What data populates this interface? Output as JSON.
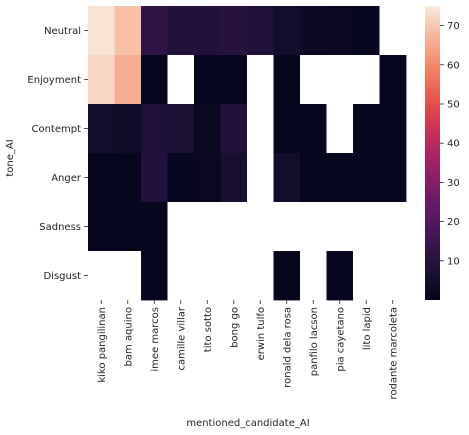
{
  "chart_data": {
    "type": "heatmap",
    "title": "",
    "xlabel": "mentioned_candidate_AI",
    "ylabel": "tone_AI",
    "x_categories": [
      "kiko pangilinan",
      "bam aquino",
      "imee marcos",
      "camille villar",
      "tito sotto",
      "bong go",
      "erwin tulfo",
      "ronald dela rosa",
      "panfilo lacson",
      "pia cayetano",
      "lito lapid",
      "rodante marcoleta"
    ],
    "y_categories": [
      "Neutral",
      "Enjoyment",
      "Contempt",
      "Anger",
      "Sadness",
      "Disgust"
    ],
    "values": [
      [
        74,
        69,
        12,
        9,
        9,
        10,
        8,
        5,
        3,
        2,
        1,
        null
      ],
      [
        72,
        66,
        1,
        null,
        1,
        1,
        null,
        1,
        null,
        null,
        null,
        1
      ],
      [
        5,
        4,
        8,
        7,
        2,
        9,
        null,
        1,
        1,
        null,
        1,
        1
      ],
      [
        1,
        1,
        9,
        1,
        2,
        6,
        null,
        5,
        1,
        1,
        1,
        1
      ],
      [
        1,
        1,
        1,
        null,
        null,
        null,
        null,
        null,
        null,
        null,
        null,
        null
      ],
      [
        null,
        null,
        1,
        null,
        null,
        null,
        null,
        1,
        null,
        1,
        null,
        null
      ]
    ],
    "colorbar": {
      "min": 0,
      "max": 75,
      "ticks": [
        10,
        20,
        30,
        40,
        50,
        60,
        70
      ],
      "colormap": "rocket",
      "position": "right"
    },
    "missing_color": "#ffffff"
  }
}
